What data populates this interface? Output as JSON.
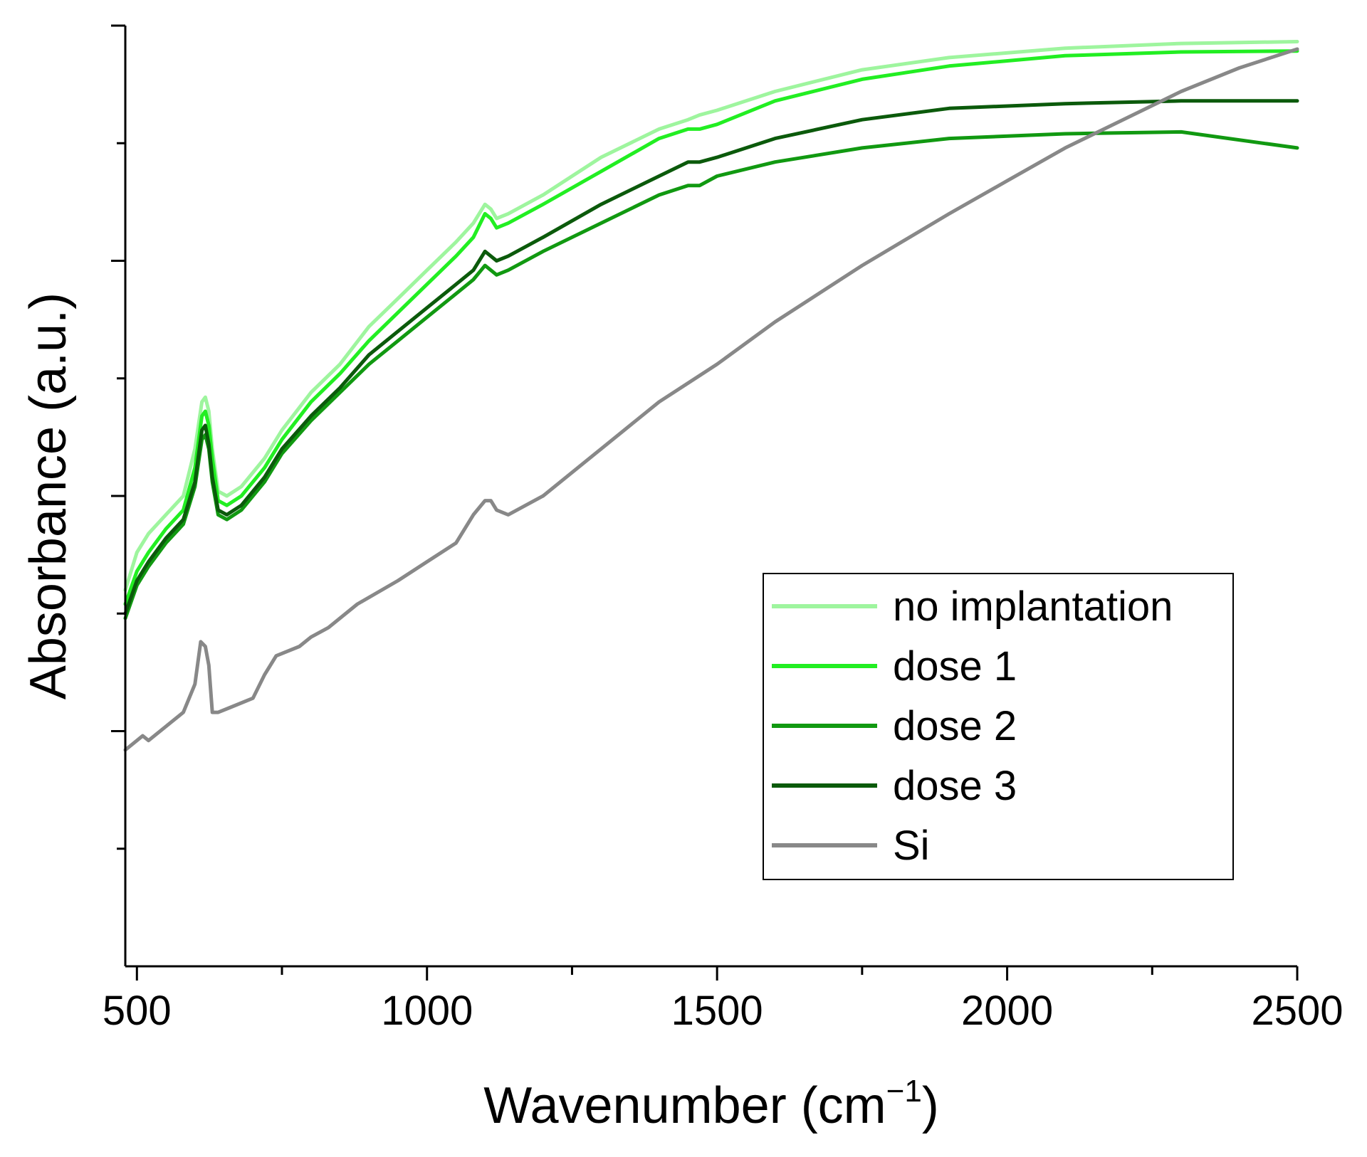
{
  "chart_data": {
    "type": "line",
    "title": "",
    "xlabel": "Wavenumber (cm",
    "xlabel_sup": "−1",
    "xlabel_close": ")",
    "ylabel": "Absorbance (a.u.)",
    "xlim": [
      480,
      2500
    ],
    "ylim": [
      0,
      1
    ],
    "x_ticks_major": [
      500,
      1000,
      1500,
      2000,
      2500
    ],
    "x_tick_labels": [
      "500",
      "1000",
      "1500",
      "2000",
      "2500"
    ],
    "x_ticks_minor": [
      750,
      1250,
      1750,
      2250
    ],
    "y_ticks_major": [
      0.25,
      0.5,
      0.75,
      1.0
    ],
    "y_ticks_minor": [
      0.125,
      0.375,
      0.625,
      0.875
    ],
    "y_tick_labels_visible": false,
    "legend_position": "lower-right",
    "series": [
      {
        "name": "no implantation",
        "color": "#9ef59e",
        "x": [
          480,
          500,
          520,
          550,
          580,
          600,
          612,
          618,
          624,
          630,
          640,
          655,
          680,
          720,
          750,
          800,
          850,
          900,
          950,
          1000,
          1050,
          1080,
          1100,
          1110,
          1120,
          1140,
          1200,
          1300,
          1400,
          1450,
          1470,
          1500,
          1600,
          1750,
          1900,
          2100,
          2300,
          2500
        ],
        "values": [
          0.4,
          0.44,
          0.46,
          0.48,
          0.5,
          0.55,
          0.6,
          0.605,
          0.59,
          0.55,
          0.505,
          0.5,
          0.51,
          0.54,
          0.57,
          0.61,
          0.64,
          0.68,
          0.71,
          0.74,
          0.77,
          0.79,
          0.81,
          0.805,
          0.795,
          0.8,
          0.82,
          0.86,
          0.89,
          0.9,
          0.905,
          0.91,
          0.93,
          0.953,
          0.966,
          0.976,
          0.981,
          0.983
        ]
      },
      {
        "name": "dose 1",
        "color": "#22ee22",
        "x": [
          480,
          500,
          520,
          550,
          580,
          600,
          612,
          618,
          624,
          630,
          640,
          655,
          680,
          720,
          750,
          800,
          850,
          900,
          950,
          1000,
          1050,
          1080,
          1100,
          1110,
          1120,
          1140,
          1200,
          1300,
          1400,
          1450,
          1470,
          1500,
          1600,
          1750,
          1900,
          2100,
          2300,
          2500
        ],
        "values": [
          0.385,
          0.42,
          0.44,
          0.465,
          0.485,
          0.53,
          0.585,
          0.59,
          0.575,
          0.54,
          0.495,
          0.49,
          0.5,
          0.53,
          0.56,
          0.6,
          0.63,
          0.665,
          0.695,
          0.725,
          0.755,
          0.775,
          0.8,
          0.795,
          0.785,
          0.79,
          0.81,
          0.845,
          0.88,
          0.89,
          0.89,
          0.895,
          0.92,
          0.943,
          0.957,
          0.968,
          0.972,
          0.973
        ]
      },
      {
        "name": "dose 2",
        "color": "#119911",
        "x": [
          480,
          500,
          520,
          550,
          580,
          600,
          612,
          618,
          624,
          630,
          640,
          655,
          680,
          720,
          750,
          800,
          850,
          900,
          950,
          1000,
          1050,
          1080,
          1100,
          1110,
          1120,
          1140,
          1200,
          1300,
          1400,
          1450,
          1470,
          1500,
          1600,
          1750,
          1900,
          2100,
          2300,
          2500
        ],
        "values": [
          0.37,
          0.405,
          0.425,
          0.45,
          0.47,
          0.51,
          0.56,
          0.565,
          0.55,
          0.515,
          0.48,
          0.475,
          0.485,
          0.515,
          0.545,
          0.58,
          0.61,
          0.64,
          0.665,
          0.69,
          0.715,
          0.73,
          0.745,
          0.74,
          0.735,
          0.74,
          0.76,
          0.79,
          0.82,
          0.83,
          0.83,
          0.84,
          0.855,
          0.87,
          0.88,
          0.885,
          0.887,
          0.87
        ]
      },
      {
        "name": "dose 3",
        "color": "#0b5a0b",
        "x": [
          480,
          500,
          520,
          550,
          580,
          600,
          612,
          618,
          624,
          630,
          640,
          655,
          680,
          720,
          750,
          800,
          850,
          900,
          950,
          1000,
          1050,
          1080,
          1100,
          1110,
          1120,
          1140,
          1200,
          1300,
          1400,
          1450,
          1470,
          1500,
          1600,
          1750,
          1900,
          2100,
          2300,
          2500
        ],
        "values": [
          0.375,
          0.41,
          0.43,
          0.455,
          0.475,
          0.515,
          0.57,
          0.575,
          0.555,
          0.52,
          0.485,
          0.48,
          0.49,
          0.52,
          0.55,
          0.585,
          0.615,
          0.65,
          0.675,
          0.7,
          0.725,
          0.74,
          0.76,
          0.755,
          0.75,
          0.755,
          0.775,
          0.81,
          0.84,
          0.855,
          0.855,
          0.86,
          0.88,
          0.9,
          0.912,
          0.917,
          0.92,
          0.92
        ]
      },
      {
        "name": "Si",
        "color": "#888888",
        "x": [
          480,
          500,
          510,
          520,
          550,
          580,
          600,
          610,
          618,
          624,
          630,
          640,
          660,
          700,
          720,
          740,
          780,
          800,
          830,
          880,
          950,
          1000,
          1050,
          1080,
          1100,
          1110,
          1120,
          1140,
          1200,
          1300,
          1400,
          1450,
          1500,
          1600,
          1750,
          1900,
          2000,
          2100,
          2200,
          2300,
          2400,
          2500
        ],
        "values": [
          0.23,
          0.24,
          0.245,
          0.24,
          0.255,
          0.27,
          0.3,
          0.345,
          0.34,
          0.32,
          0.27,
          0.27,
          0.275,
          0.285,
          0.31,
          0.33,
          0.34,
          0.35,
          0.36,
          0.385,
          0.41,
          0.43,
          0.45,
          0.48,
          0.495,
          0.495,
          0.485,
          0.48,
          0.5,
          0.55,
          0.6,
          0.62,
          0.64,
          0.685,
          0.745,
          0.8,
          0.835,
          0.87,
          0.9,
          0.93,
          0.955,
          0.975
        ]
      }
    ]
  }
}
